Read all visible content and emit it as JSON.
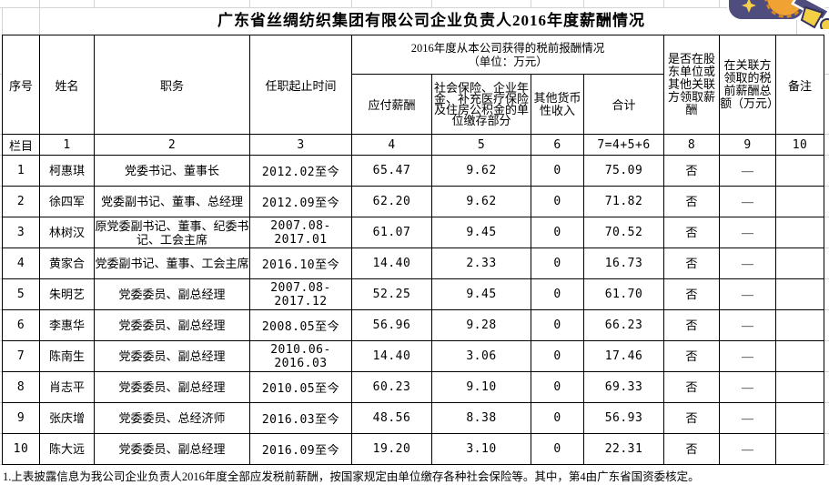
{
  "title": "广东省丝绸纺织集团有限公司企业负责人2016年度薪酬情况",
  "header": {
    "seq": "序号",
    "name": "姓名",
    "position": "职务",
    "tenure": "任职起止时间",
    "group_title": "2016年度从本公司获得的税前报酬情况",
    "group_unit": "（单位：万元）",
    "payable": "应付薪酬",
    "social_insurance": "社会保险、企业年金、补充医疗保险及住房公积金的单位缴存部分",
    "other_monetary": "其他货币性收入",
    "total": "合计",
    "other_related_pay": "是否在股东单位或其他关联方领取薪酬",
    "related_pay_amount": "在关联方领取的税前薪酬总额（万元）",
    "remark": "备注"
  },
  "index_row": [
    "栏目",
    "1",
    "2",
    "3",
    "4",
    "5",
    "6",
    "7=4+5+6",
    "8",
    "9",
    "10"
  ],
  "rows": [
    {
      "seq": "1",
      "name": "柯惠琪",
      "position": "党委书记、董事长",
      "tenure": "2012.02至今",
      "payable": "65.47",
      "social": "9.62",
      "other": "0",
      "total": "75.09",
      "related": "否",
      "related_amount": "—",
      "remark": ""
    },
    {
      "seq": "2",
      "name": "徐四军",
      "position": "党委副书记、董事、总经理",
      "tenure": "2012.09至今",
      "payable": "62.20",
      "social": "9.62",
      "other": "0",
      "total": "71.82",
      "related": "否",
      "related_amount": "—",
      "remark": ""
    },
    {
      "seq": "3",
      "name": "林树汉",
      "position": "原党委副书记、董事、纪委书记、工会主席",
      "tenure": "2007.08-2017.01",
      "payable": "61.07",
      "social": "9.45",
      "other": "0",
      "total": "70.52",
      "related": "否",
      "related_amount": "—",
      "remark": ""
    },
    {
      "seq": "4",
      "name": "黄家合",
      "position": "党委副书记、董事、工会主席",
      "tenure": "2016.10至今",
      "payable": "14.40",
      "social": "2.33",
      "other": "0",
      "total": "16.73",
      "related": "否",
      "related_amount": "—",
      "remark": ""
    },
    {
      "seq": "5",
      "name": "朱明艺",
      "position": "党委委员、副总经理",
      "tenure": "2007.08-2017.12",
      "payable": "52.25",
      "social": "9.45",
      "other": "0",
      "total": "61.70",
      "related": "否",
      "related_amount": "—",
      "remark": ""
    },
    {
      "seq": "6",
      "name": "李惠华",
      "position": "党委委员、副总经理",
      "tenure": "2008.05至今",
      "payable": "56.96",
      "social": "9.28",
      "other": "0",
      "total": "66.23",
      "related": "否",
      "related_amount": "—",
      "remark": ""
    },
    {
      "seq": "7",
      "name": "陈南生",
      "position": "党委委员、副总经理",
      "tenure": "2010.06-2016.03",
      "payable": "14.40",
      "social": "3.06",
      "other": "0",
      "total": "17.46",
      "related": "否",
      "related_amount": "—",
      "remark": ""
    },
    {
      "seq": "8",
      "name": "肖志平",
      "position": "党委委员、副总经理",
      "tenure": "2010.05至今",
      "payable": "60.23",
      "social": "9.10",
      "other": "0",
      "total": "69.33",
      "related": "否",
      "related_amount": "—",
      "remark": ""
    },
    {
      "seq": "9",
      "name": "张庆增",
      "position": "党委委员、总经济师",
      "tenure": "2016.03至今",
      "payable": "48.56",
      "social": "8.38",
      "other": "0",
      "total": "56.93",
      "related": "否",
      "related_amount": "—",
      "remark": ""
    },
    {
      "seq": "10",
      "name": "陈大远",
      "position": "党委委员、副总经理",
      "tenure": "2016.09至今",
      "payable": "19.20",
      "social": "3.10",
      "other": "0",
      "total": "22.31",
      "related": "否",
      "related_amount": "—",
      "remark": ""
    }
  ],
  "footnote": "1.上表披露信息为我公司企业负责人2016年度全部应发税前薪酬，按国家规定由单位缴存各种社会保险等。其中，第4由广东省国资委核定。",
  "decor": {
    "clipart": "sun-ribbon-clipart",
    "colors": {
      "navy": "#4f4c7e",
      "orange": "#f0a232",
      "orange_dark": "#e08818",
      "yellow": "#f3cf45",
      "outline": "#33305e",
      "grid_line": "#d4d4d4",
      "border": "#000000"
    }
  }
}
